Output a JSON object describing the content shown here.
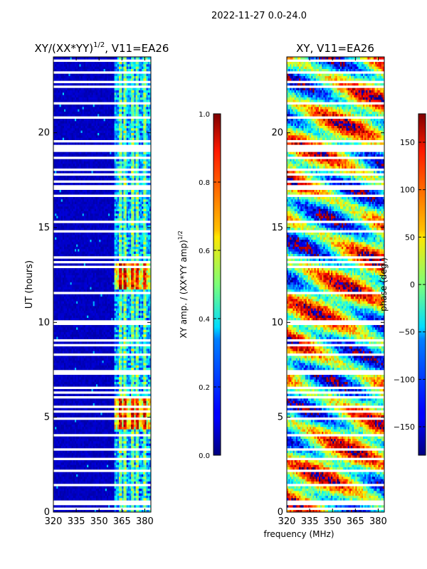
{
  "chart_data": [
    {
      "type": "heatmap",
      "suptitle": "2022-11-27 0.0-24.0",
      "title": "XY/(XX*YY)^{1/2}, V11=EA26",
      "title_main": "XY/(XX*YY)",
      "title_sup": "1/2",
      "title_tail": ", V11=EA26",
      "xlabel": "",
      "ylabel": "UT (hours)",
      "xlim": [
        320,
        384
      ],
      "ylim": [
        0,
        24
      ],
      "xticks": [
        320,
        335,
        350,
        365,
        380
      ],
      "yticks": [
        0,
        5,
        10,
        15,
        20
      ],
      "channel_band_mhz": [
        360,
        382
      ],
      "bright_channels_mhz": [
        364,
        367,
        372,
        375,
        380
      ],
      "bright_time_ranges_ut": [
        [
          4.4,
          6.0
        ],
        [
          11.8,
          13.2
        ]
      ],
      "colorbar": {
        "label": "XY amp. / (XX*YY amp)^{1/2}",
        "label_main": "XY amp. / (XX*YY amp)",
        "label_sup": "1/2",
        "range": [
          0.0,
          1.0
        ],
        "ticks": [
          0.0,
          0.2,
          0.4,
          0.6,
          0.8,
          1.0
        ],
        "tick_labels": [
          "0.0",
          "0.2",
          "0.4",
          "0.6",
          "0.8",
          "1.0"
        ],
        "colormap": "jet"
      }
    },
    {
      "type": "heatmap",
      "title": "XY, V11=EA26",
      "xlabel": "frequency (MHz)",
      "ylabel": "",
      "xlim": [
        320,
        384
      ],
      "ylim": [
        0,
        24
      ],
      "xticks": [
        320,
        335,
        350,
        365,
        380
      ],
      "yticks": [
        0,
        5,
        10,
        15,
        20
      ],
      "colorbar": {
        "label": "phase (deg.)",
        "range": [
          -180,
          180
        ],
        "ticks": [
          150,
          100,
          50,
          0,
          -50,
          -100,
          -150
        ],
        "tick_labels": [
          "150",
          "100",
          "50",
          "0",
          "−50",
          "−100",
          "−150"
        ],
        "colormap": "jet"
      }
    }
  ],
  "flagged_ut_hours": [
    0.2,
    0.45,
    0.6,
    1.4,
    2.2,
    2.8,
    3.3,
    3.5,
    4.1,
    4.9,
    5.3,
    5.6,
    6.0,
    6.1,
    6.3,
    6.6,
    7.0,
    7.3,
    7.4,
    8.0,
    8.35,
    8.5,
    8.8,
    9.1,
    9.9,
    10.1,
    10.5,
    11.0,
    11.6,
    12.9,
    13.0,
    13.2,
    13.4,
    14.0,
    14.8,
    15.3,
    15.5,
    16.0,
    16.7,
    17.1,
    17.2,
    17.4,
    17.8,
    18.1,
    18.7,
    19.1,
    19.2,
    19.3,
    19.6,
    20.0,
    20.5,
    20.8,
    21.0,
    21.6,
    22.0,
    22.4,
    22.7,
    23.0,
    23.2,
    23.5,
    23.8
  ],
  "colors": {
    "background": "#ffffff",
    "axes": "#000000",
    "flag": "#ffffff"
  }
}
